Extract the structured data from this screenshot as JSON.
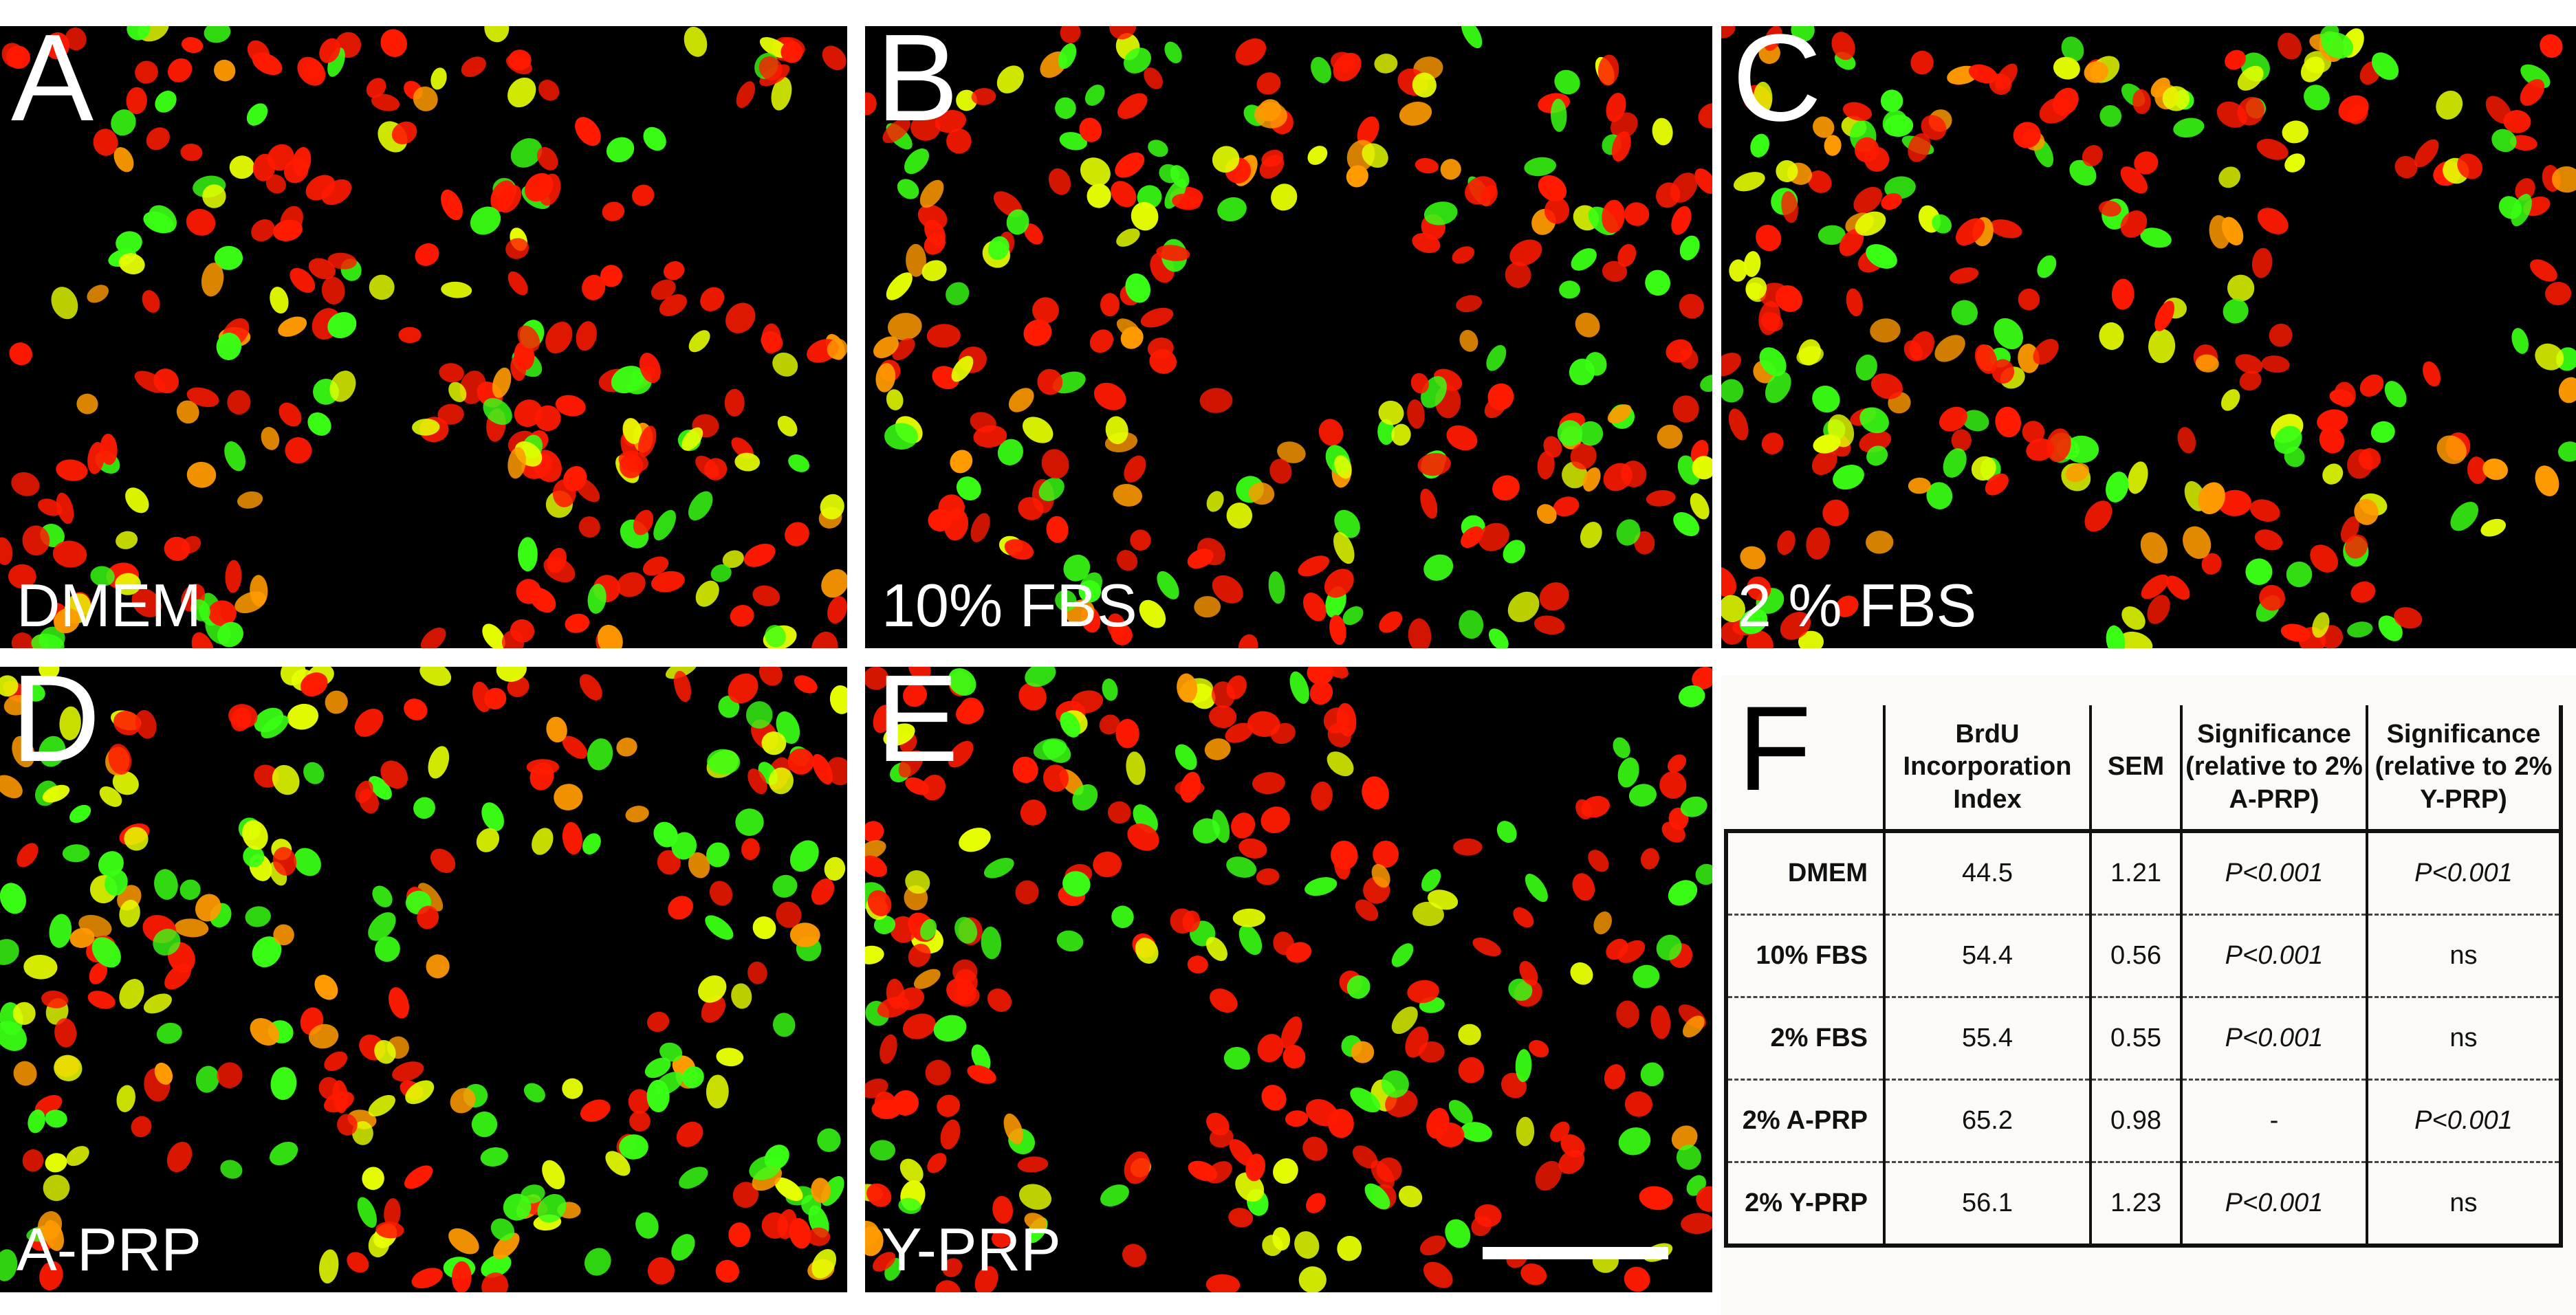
{
  "panels": [
    {
      "letter": "A",
      "caption": "DMEM",
      "seed": 11,
      "mix": 0.45
    },
    {
      "letter": "B",
      "caption": "10% FBS",
      "seed": 23,
      "mix": 0.55
    },
    {
      "letter": "C",
      "caption": "2 % FBS",
      "seed": 37,
      "mix": 0.55
    },
    {
      "letter": "D",
      "caption": "A-PRP",
      "seed": 41,
      "mix": 0.65
    },
    {
      "letter": "E",
      "caption": "Y-PRP",
      "seed": 53,
      "mix": 0.35
    }
  ],
  "colors": {
    "green": "#39ff14",
    "yellow": "#e6ff00",
    "orange": "#ff9a00",
    "red": "#ff1a00",
    "background": "#000000"
  },
  "table": {
    "letter": "F",
    "headers": [
      "BrdU Incorporation Index",
      "SEM",
      "Significance (relative to 2% A-PRP)",
      "Significance (relative to 2% Y-PRP)"
    ],
    "rows": [
      {
        "label": "DMEM",
        "index": "44.5",
        "sem": "1.21",
        "sig_aprp": "P<0.001",
        "sig_yprp": "P<0.001"
      },
      {
        "label": "10% FBS",
        "index": "54.4",
        "sem": "0.56",
        "sig_aprp": "P<0.001",
        "sig_yprp": "ns"
      },
      {
        "label": "2% FBS",
        "index": "55.4",
        "sem": "0.55",
        "sig_aprp": "P<0.001",
        "sig_yprp": "ns"
      },
      {
        "label": "2% A-PRP",
        "index": "65.2",
        "sem": "0.98",
        "sig_aprp": "-",
        "sig_yprp": "P<0.001"
      },
      {
        "label": "2% Y-PRP",
        "index": "56.1",
        "sem": "1.23",
        "sig_aprp": "P<0.001",
        "sig_yprp": "ns"
      }
    ]
  }
}
